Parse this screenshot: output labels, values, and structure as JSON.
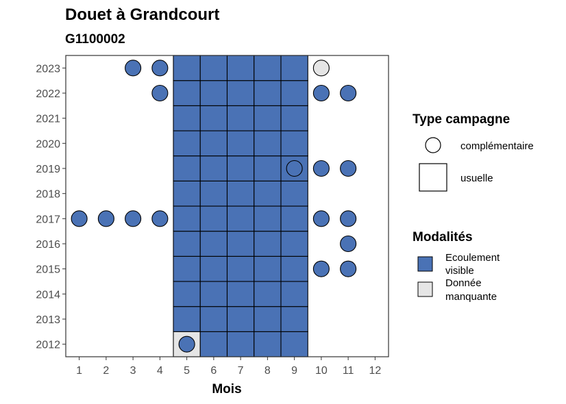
{
  "chart_data": {
    "type": "heatmap",
    "title": "Douet à Grandcourt",
    "subtitle": "G1100002",
    "xlabel": "Mois",
    "ylabel": "",
    "x_ticks": [
      1,
      2,
      3,
      4,
      5,
      6,
      7,
      8,
      9,
      10,
      11,
      12
    ],
    "y_ticks": [
      2012,
      2013,
      2014,
      2015,
      2016,
      2017,
      2018,
      2019,
      2020,
      2021,
      2022,
      2023
    ],
    "xlim": [
      0.5,
      12.5
    ],
    "ylim": [
      2011.5,
      2023.5
    ],
    "grid": false,
    "colors": {
      "Ecoulement visible": "#4a72b5",
      "Donnée manquante": "#e5e5e5"
    },
    "points": [
      {
        "month": 5,
        "year": 2012,
        "campaign": "usuelle",
        "modality": "Donnée manquante"
      },
      {
        "month": 6,
        "year": 2012,
        "campaign": "usuelle",
        "modality": "Ecoulement visible"
      },
      {
        "month": 7,
        "year": 2012,
        "campaign": "usuelle",
        "modality": "Ecoulement visible"
      },
      {
        "month": 8,
        "year": 2012,
        "campaign": "usuelle",
        "modality": "Ecoulement visible"
      },
      {
        "month": 9,
        "year": 2012,
        "campaign": "usuelle",
        "modality": "Ecoulement visible"
      },
      {
        "month": 5,
        "year": 2012,
        "campaign": "complémentaire",
        "modality": "Ecoulement visible"
      },
      {
        "month": 5,
        "year": 2013,
        "campaign": "usuelle",
        "modality": "Ecoulement visible"
      },
      {
        "month": 6,
        "year": 2013,
        "campaign": "usuelle",
        "modality": "Ecoulement visible"
      },
      {
        "month": 7,
        "year": 2013,
        "campaign": "usuelle",
        "modality": "Ecoulement visible"
      },
      {
        "month": 8,
        "year": 2013,
        "campaign": "usuelle",
        "modality": "Ecoulement visible"
      },
      {
        "month": 9,
        "year": 2013,
        "campaign": "usuelle",
        "modality": "Ecoulement visible"
      },
      {
        "month": 5,
        "year": 2014,
        "campaign": "usuelle",
        "modality": "Ecoulement visible"
      },
      {
        "month": 6,
        "year": 2014,
        "campaign": "usuelle",
        "modality": "Ecoulement visible"
      },
      {
        "month": 7,
        "year": 2014,
        "campaign": "usuelle",
        "modality": "Ecoulement visible"
      },
      {
        "month": 8,
        "year": 2014,
        "campaign": "usuelle",
        "modality": "Ecoulement visible"
      },
      {
        "month": 9,
        "year": 2014,
        "campaign": "usuelle",
        "modality": "Ecoulement visible"
      },
      {
        "month": 5,
        "year": 2015,
        "campaign": "usuelle",
        "modality": "Ecoulement visible"
      },
      {
        "month": 6,
        "year": 2015,
        "campaign": "usuelle",
        "modality": "Ecoulement visible"
      },
      {
        "month": 7,
        "year": 2015,
        "campaign": "usuelle",
        "modality": "Ecoulement visible"
      },
      {
        "month": 8,
        "year": 2015,
        "campaign": "usuelle",
        "modality": "Ecoulement visible"
      },
      {
        "month": 9,
        "year": 2015,
        "campaign": "usuelle",
        "modality": "Ecoulement visible"
      },
      {
        "month": 10,
        "year": 2015,
        "campaign": "complémentaire",
        "modality": "Ecoulement visible"
      },
      {
        "month": 11,
        "year": 2015,
        "campaign": "complémentaire",
        "modality": "Ecoulement visible"
      },
      {
        "month": 5,
        "year": 2016,
        "campaign": "usuelle",
        "modality": "Ecoulement visible"
      },
      {
        "month": 6,
        "year": 2016,
        "campaign": "usuelle",
        "modality": "Ecoulement visible"
      },
      {
        "month": 7,
        "year": 2016,
        "campaign": "usuelle",
        "modality": "Ecoulement visible"
      },
      {
        "month": 8,
        "year": 2016,
        "campaign": "usuelle",
        "modality": "Ecoulement visible"
      },
      {
        "month": 9,
        "year": 2016,
        "campaign": "usuelle",
        "modality": "Ecoulement visible"
      },
      {
        "month": 11,
        "year": 2016,
        "campaign": "complémentaire",
        "modality": "Ecoulement visible"
      },
      {
        "month": 5,
        "year": 2017,
        "campaign": "usuelle",
        "modality": "Ecoulement visible"
      },
      {
        "month": 6,
        "year": 2017,
        "campaign": "usuelle",
        "modality": "Ecoulement visible"
      },
      {
        "month": 7,
        "year": 2017,
        "campaign": "usuelle",
        "modality": "Ecoulement visible"
      },
      {
        "month": 8,
        "year": 2017,
        "campaign": "usuelle",
        "modality": "Ecoulement visible"
      },
      {
        "month": 9,
        "year": 2017,
        "campaign": "usuelle",
        "modality": "Ecoulement visible"
      },
      {
        "month": 1,
        "year": 2017,
        "campaign": "complémentaire",
        "modality": "Ecoulement visible"
      },
      {
        "month": 2,
        "year": 2017,
        "campaign": "complémentaire",
        "modality": "Ecoulement visible"
      },
      {
        "month": 3,
        "year": 2017,
        "campaign": "complémentaire",
        "modality": "Ecoulement visible"
      },
      {
        "month": 4,
        "year": 2017,
        "campaign": "complémentaire",
        "modality": "Ecoulement visible"
      },
      {
        "month": 10,
        "year": 2017,
        "campaign": "complémentaire",
        "modality": "Ecoulement visible"
      },
      {
        "month": 11,
        "year": 2017,
        "campaign": "complémentaire",
        "modality": "Ecoulement visible"
      },
      {
        "month": 5,
        "year": 2018,
        "campaign": "usuelle",
        "modality": "Ecoulement visible"
      },
      {
        "month": 6,
        "year": 2018,
        "campaign": "usuelle",
        "modality": "Ecoulement visible"
      },
      {
        "month": 7,
        "year": 2018,
        "campaign": "usuelle",
        "modality": "Ecoulement visible"
      },
      {
        "month": 8,
        "year": 2018,
        "campaign": "usuelle",
        "modality": "Ecoulement visible"
      },
      {
        "month": 9,
        "year": 2018,
        "campaign": "usuelle",
        "modality": "Ecoulement visible"
      },
      {
        "month": 5,
        "year": 2019,
        "campaign": "usuelle",
        "modality": "Ecoulement visible"
      },
      {
        "month": 6,
        "year": 2019,
        "campaign": "usuelle",
        "modality": "Ecoulement visible"
      },
      {
        "month": 7,
        "year": 2019,
        "campaign": "usuelle",
        "modality": "Ecoulement visible"
      },
      {
        "month": 8,
        "year": 2019,
        "campaign": "usuelle",
        "modality": "Ecoulement visible"
      },
      {
        "month": 9,
        "year": 2019,
        "campaign": "usuelle",
        "modality": "Ecoulement visible"
      },
      {
        "month": 9,
        "year": 2019,
        "campaign": "complémentaire",
        "modality": "Ecoulement visible"
      },
      {
        "month": 10,
        "year": 2019,
        "campaign": "complémentaire",
        "modality": "Ecoulement visible"
      },
      {
        "month": 11,
        "year": 2019,
        "campaign": "complémentaire",
        "modality": "Ecoulement visible"
      },
      {
        "month": 5,
        "year": 2020,
        "campaign": "usuelle",
        "modality": "Ecoulement visible"
      },
      {
        "month": 6,
        "year": 2020,
        "campaign": "usuelle",
        "modality": "Ecoulement visible"
      },
      {
        "month": 7,
        "year": 2020,
        "campaign": "usuelle",
        "modality": "Ecoulement visible"
      },
      {
        "month": 8,
        "year": 2020,
        "campaign": "usuelle",
        "modality": "Ecoulement visible"
      },
      {
        "month": 9,
        "year": 2020,
        "campaign": "usuelle",
        "modality": "Ecoulement visible"
      },
      {
        "month": 5,
        "year": 2021,
        "campaign": "usuelle",
        "modality": "Ecoulement visible"
      },
      {
        "month": 6,
        "year": 2021,
        "campaign": "usuelle",
        "modality": "Ecoulement visible"
      },
      {
        "month": 7,
        "year": 2021,
        "campaign": "usuelle",
        "modality": "Ecoulement visible"
      },
      {
        "month": 8,
        "year": 2021,
        "campaign": "usuelle",
        "modality": "Ecoulement visible"
      },
      {
        "month": 9,
        "year": 2021,
        "campaign": "usuelle",
        "modality": "Ecoulement visible"
      },
      {
        "month": 5,
        "year": 2022,
        "campaign": "usuelle",
        "modality": "Ecoulement visible"
      },
      {
        "month": 6,
        "year": 2022,
        "campaign": "usuelle",
        "modality": "Ecoulement visible"
      },
      {
        "month": 7,
        "year": 2022,
        "campaign": "usuelle",
        "modality": "Ecoulement visible"
      },
      {
        "month": 8,
        "year": 2022,
        "campaign": "usuelle",
        "modality": "Ecoulement visible"
      },
      {
        "month": 9,
        "year": 2022,
        "campaign": "usuelle",
        "modality": "Ecoulement visible"
      },
      {
        "month": 4,
        "year": 2022,
        "campaign": "complémentaire",
        "modality": "Ecoulement visible"
      },
      {
        "month": 10,
        "year": 2022,
        "campaign": "complémentaire",
        "modality": "Ecoulement visible"
      },
      {
        "month": 11,
        "year": 2022,
        "campaign": "complémentaire",
        "modality": "Ecoulement visible"
      },
      {
        "month": 5,
        "year": 2023,
        "campaign": "usuelle",
        "modality": "Ecoulement visible"
      },
      {
        "month": 6,
        "year": 2023,
        "campaign": "usuelle",
        "modality": "Ecoulement visible"
      },
      {
        "month": 7,
        "year": 2023,
        "campaign": "usuelle",
        "modality": "Ecoulement visible"
      },
      {
        "month": 8,
        "year": 2023,
        "campaign": "usuelle",
        "modality": "Ecoulement visible"
      },
      {
        "month": 9,
        "year": 2023,
        "campaign": "usuelle",
        "modality": "Ecoulement visible"
      },
      {
        "month": 3,
        "year": 2023,
        "campaign": "complémentaire",
        "modality": "Ecoulement visible"
      },
      {
        "month": 4,
        "year": 2023,
        "campaign": "complémentaire",
        "modality": "Ecoulement visible"
      },
      {
        "month": 10,
        "year": 2023,
        "campaign": "complémentaire",
        "modality": "Donnée manquante"
      }
    ],
    "legend": {
      "placement": "right",
      "campaign_title": "Type campagne",
      "campaign_items": [
        "complémentaire",
        "usuelle"
      ],
      "modality_title": "Modalités",
      "modality_items": [
        {
          "label_line1": "Ecoulement",
          "label_line2": "visible",
          "color": "#4a72b5"
        },
        {
          "label_line1": "Donnée",
          "label_line2": "manquante",
          "color": "#e5e5e5"
        }
      ]
    }
  }
}
